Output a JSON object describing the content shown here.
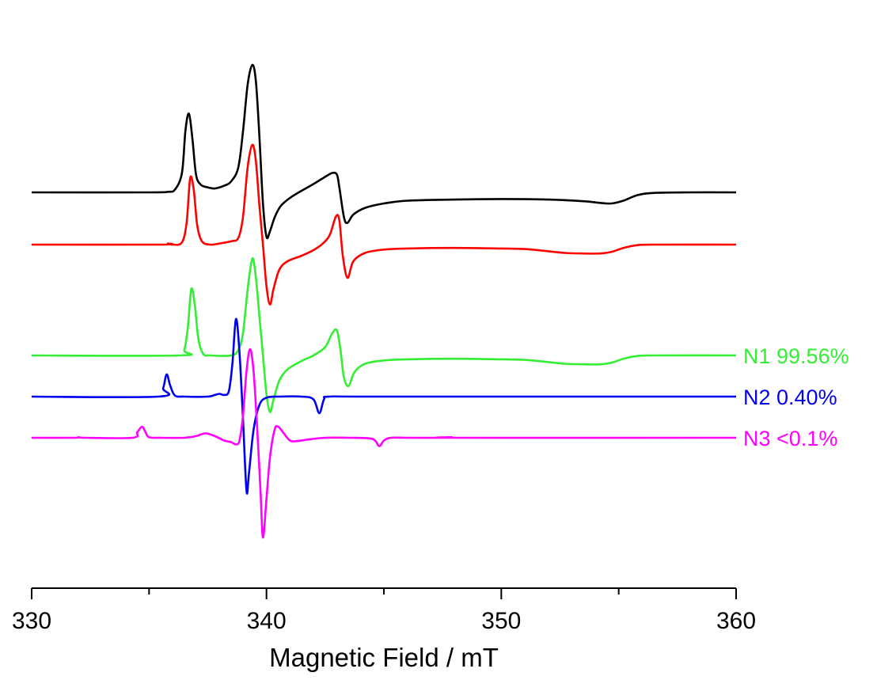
{
  "chart_data": {
    "type": "line",
    "title": "",
    "xlabel": "Magnetic Field / mT",
    "ylabel": "",
    "xlim": [
      330,
      360
    ],
    "x_ticks": [
      330,
      340,
      350,
      360
    ],
    "x_minor_ticks": [
      335,
      345,
      355
    ],
    "grid": false,
    "legend": "inline labels at right end of traces",
    "series": [
      {
        "color": "#000000",
        "points": [
          [
            330.0,
            0.0
          ],
          [
            335.0,
            0.0
          ],
          [
            335.8,
            0.1
          ],
          [
            336.1,
            0.5
          ],
          [
            336.4,
            3.5
          ],
          [
            336.55,
            11.2
          ],
          [
            336.7,
            14.2
          ],
          [
            336.85,
            9.5
          ],
          [
            337.0,
            3.2
          ],
          [
            337.2,
            1.4
          ],
          [
            337.5,
            0.9
          ],
          [
            337.8,
            0.7
          ],
          [
            338.2,
            1.2
          ],
          [
            338.5,
            2.0
          ],
          [
            338.8,
            4.5
          ],
          [
            339.0,
            11.0
          ],
          [
            339.2,
            19.5
          ],
          [
            339.4,
            23.0
          ],
          [
            339.55,
            20.0
          ],
          [
            339.7,
            10.0
          ],
          [
            339.85,
            -2.0
          ],
          [
            340.0,
            -8.0
          ],
          [
            340.15,
            -7.0
          ],
          [
            340.35,
            -4.5
          ],
          [
            340.6,
            -2.5
          ],
          [
            341.0,
            -1.0
          ],
          [
            341.5,
            0.3
          ],
          [
            342.0,
            1.5
          ],
          [
            342.5,
            2.8
          ],
          [
            342.8,
            3.5
          ],
          [
            343.0,
            3.2
          ],
          [
            343.1,
            1.0
          ],
          [
            343.3,
            -4.5
          ],
          [
            343.45,
            -5.5
          ],
          [
            343.7,
            -4.0
          ],
          [
            344.2,
            -2.8
          ],
          [
            345.0,
            -2.0
          ],
          [
            346.0,
            -1.5
          ],
          [
            348.0,
            -1.3
          ],
          [
            350.0,
            -1.2
          ],
          [
            352.0,
            -1.3
          ],
          [
            353.5,
            -1.6
          ],
          [
            354.2,
            -1.9
          ],
          [
            354.7,
            -2.0
          ],
          [
            355.2,
            -1.5
          ],
          [
            355.8,
            -0.5
          ],
          [
            356.5,
            -0.1
          ],
          [
            358.0,
            0.0
          ],
          [
            360.0,
            0.0
          ]
        ]
      },
      {
        "color": "#ff0000",
        "points": [
          [
            330.0,
            0.0
          ],
          [
            335.5,
            0.0
          ],
          [
            335.8,
            0.2
          ],
          [
            336.0,
            0.0
          ],
          [
            336.4,
            0.4
          ],
          [
            336.6,
            4.0
          ],
          [
            336.75,
            12.0
          ],
          [
            336.9,
            10.0
          ],
          [
            337.05,
            3.5
          ],
          [
            337.25,
            0.6
          ],
          [
            337.6,
            0.0
          ],
          [
            338.0,
            0.2
          ],
          [
            338.5,
            0.6
          ],
          [
            338.8,
            1.2
          ],
          [
            339.0,
            5.0
          ],
          [
            339.2,
            14.0
          ],
          [
            339.4,
            18.0
          ],
          [
            339.55,
            15.0
          ],
          [
            339.7,
            7.0
          ],
          [
            339.85,
            0.0
          ],
          [
            340.0,
            -7.5
          ],
          [
            340.15,
            -10.8
          ],
          [
            340.3,
            -8.0
          ],
          [
            340.55,
            -4.5
          ],
          [
            340.9,
            -3.0
          ],
          [
            341.5,
            -2.0
          ],
          [
            342.0,
            -1.0
          ],
          [
            342.4,
            0.2
          ],
          [
            342.7,
            1.8
          ],
          [
            342.95,
            5.0
          ],
          [
            343.1,
            4.5
          ],
          [
            343.25,
            -2.0
          ],
          [
            343.45,
            -6.0
          ],
          [
            343.7,
            -3.0
          ],
          [
            344.2,
            -1.5
          ],
          [
            345.0,
            -0.9
          ],
          [
            346.0,
            -0.7
          ],
          [
            348.0,
            -0.6
          ],
          [
            350.0,
            -0.7
          ],
          [
            351.0,
            -0.8
          ],
          [
            352.0,
            -1.2
          ],
          [
            352.7,
            -1.5
          ],
          [
            353.5,
            -1.6
          ],
          [
            354.2,
            -1.6
          ],
          [
            354.7,
            -1.3
          ],
          [
            355.2,
            -0.6
          ],
          [
            355.8,
            -0.1
          ],
          [
            356.5,
            0.0
          ],
          [
            360.0,
            0.0
          ]
        ]
      },
      {
        "color": "#33ee33",
        "name": "N1",
        "label": "N1  99.56%",
        "points": [
          [
            330.0,
            0.0
          ],
          [
            336.3,
            0.0
          ],
          [
            336.5,
            1.0
          ],
          [
            336.65,
            5.0
          ],
          [
            336.8,
            12.0
          ],
          [
            336.95,
            9.0
          ],
          [
            337.1,
            3.0
          ],
          [
            337.3,
            0.3
          ],
          [
            337.6,
            0.0
          ],
          [
            338.5,
            0.0
          ],
          [
            338.8,
            1.0
          ],
          [
            339.0,
            4.0
          ],
          [
            339.2,
            12.0
          ],
          [
            339.4,
            17.5
          ],
          [
            339.55,
            14.0
          ],
          [
            339.7,
            7.0
          ],
          [
            339.85,
            0.0
          ],
          [
            340.0,
            -7.0
          ],
          [
            340.15,
            -10.2
          ],
          [
            340.3,
            -8.0
          ],
          [
            340.55,
            -4.5
          ],
          [
            340.9,
            -2.5
          ],
          [
            341.5,
            -1.0
          ],
          [
            342.0,
            0.0
          ],
          [
            342.5,
            1.5
          ],
          [
            342.8,
            4.0
          ],
          [
            343.0,
            4.5
          ],
          [
            343.15,
            1.0
          ],
          [
            343.3,
            -4.0
          ],
          [
            343.5,
            -5.5
          ],
          [
            343.75,
            -3.0
          ],
          [
            344.2,
            -1.5
          ],
          [
            345.0,
            -0.9
          ],
          [
            346.0,
            -0.7
          ],
          [
            348.0,
            -0.6
          ],
          [
            350.0,
            -0.7
          ],
          [
            351.0,
            -0.8
          ],
          [
            352.0,
            -1.2
          ],
          [
            352.7,
            -1.5
          ],
          [
            353.5,
            -1.6
          ],
          [
            354.2,
            -1.6
          ],
          [
            354.7,
            -1.3
          ],
          [
            355.2,
            -0.6
          ],
          [
            355.8,
            -0.1
          ],
          [
            356.5,
            0.0
          ],
          [
            360.0,
            0.0
          ]
        ]
      },
      {
        "color": "#0000ee",
        "name": "N2",
        "label": "N2  0.40%",
        "points": [
          [
            330.0,
            0.0
          ],
          [
            335.4,
            0.0
          ],
          [
            335.6,
            1.5
          ],
          [
            335.75,
            4.0
          ],
          [
            335.9,
            2.0
          ],
          [
            336.1,
            0.2
          ],
          [
            336.5,
            0.0
          ],
          [
            337.5,
            0.0
          ],
          [
            337.8,
            0.3
          ],
          [
            338.0,
            0.5
          ],
          [
            338.2,
            0.3
          ],
          [
            338.4,
            1.0
          ],
          [
            338.55,
            6.0
          ],
          [
            338.7,
            14.0
          ],
          [
            338.85,
            8.0
          ],
          [
            339.0,
            -4.0
          ],
          [
            339.15,
            -17.0
          ],
          [
            339.25,
            -14.0
          ],
          [
            339.45,
            -6.0
          ],
          [
            339.7,
            -1.5
          ],
          [
            340.0,
            -0.2
          ],
          [
            340.5,
            0.0
          ],
          [
            341.5,
            0.0
          ],
          [
            342.0,
            -0.5
          ],
          [
            342.25,
            -3.0
          ],
          [
            342.45,
            -0.5
          ],
          [
            342.7,
            0.0
          ],
          [
            345.0,
            0.0
          ],
          [
            360.0,
            0.0
          ]
        ]
      },
      {
        "color": "#ff00ff",
        "name": "N3",
        "label": "N3  <0.1%",
        "points": [
          [
            330.0,
            0.0
          ],
          [
            331.8,
            0.0
          ],
          [
            332.0,
            0.1
          ],
          [
            332.3,
            0.0
          ],
          [
            334.3,
            0.0
          ],
          [
            334.5,
            1.0
          ],
          [
            334.7,
            2.0
          ],
          [
            334.85,
            1.0
          ],
          [
            335.0,
            0.1
          ],
          [
            335.5,
            0.0
          ],
          [
            336.5,
            0.0
          ],
          [
            337.0,
            0.3
          ],
          [
            337.4,
            0.8
          ],
          [
            337.8,
            0.3
          ],
          [
            338.2,
            -0.5
          ],
          [
            338.5,
            -0.8
          ],
          [
            338.7,
            -1.2
          ],
          [
            338.85,
            -0.5
          ],
          [
            339.0,
            4.0
          ],
          [
            339.15,
            12.0
          ],
          [
            339.3,
            16.0
          ],
          [
            339.45,
            12.0
          ],
          [
            339.6,
            2.0
          ],
          [
            339.75,
            -10.0
          ],
          [
            339.85,
            -18.0
          ],
          [
            340.0,
            -11.0
          ],
          [
            340.15,
            -3.5
          ],
          [
            340.35,
            1.5
          ],
          [
            340.5,
            2.0
          ],
          [
            340.7,
            1.0
          ],
          [
            341.0,
            -0.5
          ],
          [
            341.3,
            -0.6
          ],
          [
            341.8,
            -0.3
          ],
          [
            342.5,
            0.0
          ],
          [
            343.5,
            0.0
          ],
          [
            344.5,
            -0.2
          ],
          [
            344.8,
            -1.5
          ],
          [
            345.0,
            -0.5
          ],
          [
            345.3,
            0.0
          ],
          [
            346.0,
            0.0
          ],
          [
            347.6,
            0.0
          ],
          [
            347.9,
            0.1
          ],
          [
            348.2,
            0.0
          ],
          [
            360.0,
            0.0
          ]
        ]
      }
    ]
  }
}
